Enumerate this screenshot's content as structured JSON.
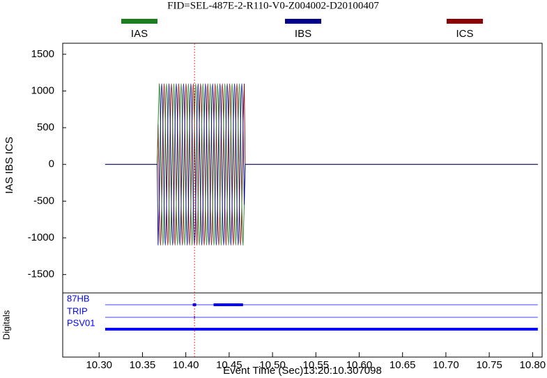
{
  "chart_data": {
    "type": "oscillography",
    "title": "FID=SEL-487E-2-R110-V0-Z004002-D20100407",
    "ylabel": "IAS IBS ICS",
    "digitals_label": "Digitals",
    "xlabel": "Event Time (Sec)13:20:10.307098",
    "x": [
      10.307,
      10.367,
      10.368,
      10.3694,
      10.3708,
      10.3722,
      10.3736,
      10.375,
      10.3764,
      10.3778,
      10.3792,
      10.3806,
      10.382,
      10.3834,
      10.3848,
      10.3862,
      10.3876,
      10.389,
      10.3904,
      10.3918,
      10.3932,
      10.3946,
      10.396,
      10.3974,
      10.3988,
      10.4002,
      10.4016,
      10.403,
      10.4044,
      10.4058,
      10.4072,
      10.4086,
      10.41,
      10.4114,
      10.4128,
      10.4142,
      10.4156,
      10.417,
      10.4184,
      10.4198,
      10.4212,
      10.4226,
      10.424,
      10.4254,
      10.4268,
      10.4282,
      10.4296,
      10.431,
      10.4324,
      10.4338,
      10.4352,
      10.4366,
      10.438,
      10.4394,
      10.4408,
      10.4422,
      10.4436,
      10.445,
      10.4464,
      10.4478,
      10.4492,
      10.4506,
      10.452,
      10.4534,
      10.4548,
      10.4562,
      10.4576,
      10.459,
      10.4604,
      10.4618,
      10.4632,
      10.4646,
      10.466,
      10.4674,
      10.4685,
      10.806
    ],
    "series": [
      {
        "name": "ICS",
        "color": "#8b0000",
        "values": [
          0,
          0,
          550,
          -550,
          -1100,
          -550,
          550,
          1100,
          550,
          -550,
          -1100,
          -550,
          550,
          1100,
          550,
          -550,
          -1100,
          -550,
          550,
          1100,
          550,
          -550,
          -1100,
          -550,
          550,
          1100,
          550,
          -550,
          -1100,
          -550,
          550,
          1100,
          550,
          -550,
          -1100,
          -550,
          550,
          1100,
          550,
          -550,
          -1100,
          -550,
          550,
          1100,
          550,
          -550,
          -1100,
          -550,
          550,
          1100,
          550,
          -550,
          -1100,
          -550,
          550,
          1100,
          550,
          -550,
          -1100,
          -550,
          550,
          1100,
          550,
          -550,
          -1100,
          -550,
          550,
          1100,
          550,
          -550,
          -1100,
          -550,
          550,
          1100,
          0,
          0
        ]
      },
      {
        "name": "IAS",
        "color": "#1e7d1e",
        "values": [
          0,
          0,
          550,
          1100,
          550,
          -550,
          -1100,
          -550,
          550,
          1100,
          550,
          -550,
          -1100,
          -550,
          550,
          1100,
          550,
          -550,
          -1100,
          -550,
          550,
          1100,
          550,
          -550,
          -1100,
          -550,
          550,
          1100,
          550,
          -550,
          -1100,
          -550,
          550,
          1100,
          550,
          -550,
          -1100,
          -550,
          550,
          1100,
          550,
          -550,
          -1100,
          -550,
          550,
          1100,
          550,
          -550,
          -1100,
          -550,
          550,
          1100,
          550,
          -550,
          -1100,
          -550,
          550,
          1100,
          550,
          -550,
          -1100,
          -550,
          550,
          1100,
          550,
          -550,
          -1100,
          -550,
          550,
          1100,
          550,
          -550,
          -1100,
          -550,
          0,
          0
        ]
      },
      {
        "name": "IBS",
        "color": "#00008b",
        "values": [
          0,
          0,
          -1100,
          -550,
          550,
          1100,
          550,
          -550,
          -1100,
          -550,
          550,
          1100,
          550,
          -550,
          -1100,
          -550,
          550,
          1100,
          550,
          -550,
          -1100,
          -550,
          550,
          1100,
          550,
          -550,
          -1100,
          -550,
          550,
          1100,
          550,
          -550,
          -1100,
          -550,
          550,
          1100,
          550,
          -550,
          -1100,
          -550,
          550,
          1100,
          550,
          -550,
          -1100,
          -550,
          550,
          1100,
          550,
          -550,
          -1100,
          -550,
          550,
          1100,
          550,
          -550,
          -1100,
          -550,
          550,
          1100,
          550,
          -550,
          -1100,
          -550,
          550,
          1100,
          550,
          -550,
          -1100,
          -550,
          550,
          1100,
          550,
          -550,
          0,
          0
        ]
      }
    ],
    "legend_order": [
      1,
      2,
      0
    ],
    "ylim": [
      -1750,
      1650
    ],
    "yticks": [
      1500,
      1000,
      500,
      0,
      -500,
      -1000,
      -1500
    ],
    "xlim": [
      10.258,
      10.811
    ],
    "xticks": [
      {
        "value": 10.3,
        "label": "10.30"
      },
      10.35,
      {
        "value": 10.4,
        "label": "10.40"
      },
      10.45,
      {
        "value": 10.5,
        "label": "10.50"
      },
      10.55,
      {
        "value": 10.6,
        "label": "10.60"
      },
      10.65,
      {
        "value": 10.7,
        "label": "10.70"
      },
      10.75,
      {
        "value": 10.8,
        "label": "10.80"
      }
    ],
    "cursor_x": 10.41,
    "digital_color": "#0000ff",
    "digital_span": [
      10.307,
      10.806
    ],
    "digitals": [
      {
        "name": "87HB",
        "on": [
          [
            10.408,
            10.412
          ],
          [
            10.432,
            10.466
          ]
        ]
      },
      {
        "name": "TRIP",
        "on": [
          [
            10.4095,
            10.4105
          ]
        ]
      },
      {
        "name": "PSV01",
        "on": [
          [
            10.307,
            10.806
          ]
        ]
      }
    ]
  }
}
